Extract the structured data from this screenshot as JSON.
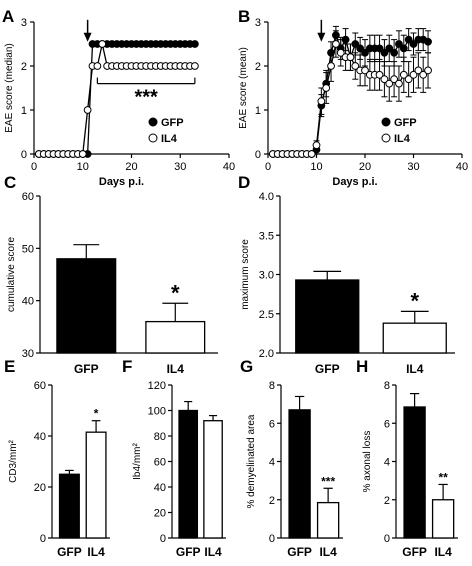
{
  "chart_data": [
    {
      "panel": "A",
      "type": "line",
      "xlabel": "Days p.i.",
      "ylabel": "EAE score (median)",
      "xlim": [
        0,
        40
      ],
      "ylim": [
        0,
        3
      ],
      "xticks": [
        "0",
        "10",
        "20",
        "30",
        "40"
      ],
      "yticks": [
        "0",
        "1",
        "2",
        "3"
      ],
      "legend": "bottom-right",
      "arrow_day": 11,
      "significance": "***",
      "series": [
        {
          "name": "GFP",
          "marker": "filled",
          "x": [
            1,
            2,
            3,
            4,
            5,
            6,
            7,
            8,
            9,
            10,
            11,
            12,
            13,
            14,
            15,
            16,
            17,
            18,
            19,
            20,
            21,
            22,
            23,
            24,
            25,
            26,
            27,
            28,
            29,
            30,
            31,
            32,
            33
          ],
          "y": [
            0,
            0,
            0,
            0,
            0,
            0,
            0,
            0,
            0,
            0,
            0,
            2.5,
            2.5,
            2.5,
            2.5,
            2.5,
            2.5,
            2.5,
            2.5,
            2.5,
            2.5,
            2.5,
            2.5,
            2.5,
            2.5,
            2.5,
            2.5,
            2.5,
            2.5,
            2.5,
            2.5,
            2.5,
            2.5
          ]
        },
        {
          "name": "IL4",
          "marker": "open",
          "x": [
            1,
            2,
            3,
            4,
            5,
            6,
            7,
            8,
            9,
            10,
            11,
            12,
            13,
            14,
            15,
            16,
            17,
            18,
            19,
            20,
            21,
            22,
            23,
            24,
            25,
            26,
            27,
            28,
            29,
            30,
            31,
            32,
            33
          ],
          "y": [
            0,
            0,
            0,
            0,
            0,
            0,
            0,
            0,
            0,
            0,
            1,
            2,
            2,
            2.5,
            2,
            2,
            2,
            2,
            2,
            2,
            2,
            2,
            2,
            2,
            2,
            2,
            2,
            2,
            2,
            2,
            2,
            2,
            2
          ]
        }
      ]
    },
    {
      "panel": "B",
      "type": "line",
      "xlabel": "Days p.i.",
      "ylabel": "EAE score (mean)",
      "xlim": [
        0,
        40
      ],
      "ylim": [
        0,
        3
      ],
      "xticks": [
        "0",
        "10",
        "20",
        "30",
        "40"
      ],
      "yticks": [
        "0",
        "1",
        "2",
        "3"
      ],
      "legend": "bottom-right",
      "arrow_day": 11,
      "series": [
        {
          "name": "GFP",
          "marker": "filled",
          "x": [
            1,
            2,
            3,
            4,
            5,
            6,
            7,
            8,
            9,
            10,
            11,
            12,
            13,
            14,
            15,
            16,
            17,
            18,
            19,
            20,
            21,
            22,
            23,
            24,
            25,
            26,
            27,
            28,
            29,
            30,
            31,
            32,
            33
          ],
          "y": [
            0,
            0,
            0,
            0,
            0,
            0,
            0,
            0,
            0,
            0.1,
            1.1,
            1.6,
            2.3,
            2.7,
            2.4,
            2.6,
            2.2,
            2.5,
            2.4,
            2.3,
            2.4,
            2.4,
            2.4,
            2.3,
            2.4,
            2.3,
            2.5,
            2.4,
            2.6,
            2.5,
            2.6,
            2.6,
            2.55
          ],
          "err": [
            0,
            0,
            0,
            0,
            0,
            0,
            0,
            0,
            0,
            0.05,
            0.25,
            0.3,
            0.25,
            0.2,
            0.25,
            0.25,
            0.3,
            0.25,
            0.25,
            0.3,
            0.3,
            0.3,
            0.3,
            0.3,
            0.3,
            0.3,
            0.3,
            0.3,
            0.25,
            0.25,
            0.25,
            0.25,
            0.25
          ]
        },
        {
          "name": "IL4",
          "marker": "open",
          "x": [
            1,
            2,
            3,
            4,
            5,
            6,
            7,
            8,
            9,
            10,
            11,
            12,
            13,
            14,
            15,
            16,
            17,
            18,
            19,
            20,
            21,
            22,
            23,
            24,
            25,
            26,
            27,
            28,
            29,
            30,
            31,
            32,
            33
          ],
          "y": [
            0,
            0,
            0,
            0,
            0,
            0,
            0,
            0,
            0,
            0.2,
            1.2,
            1.5,
            2.0,
            2.5,
            2.3,
            2.2,
            2.2,
            2.0,
            1.9,
            1.9,
            1.8,
            1.8,
            1.8,
            1.7,
            1.6,
            1.7,
            1.6,
            1.8,
            1.7,
            1.8,
            1.9,
            1.8,
            1.9
          ],
          "err": [
            0,
            0,
            0,
            0,
            0,
            0,
            0,
            0,
            0,
            0.1,
            0.3,
            0.35,
            0.35,
            0.3,
            0.3,
            0.3,
            0.3,
            0.3,
            0.35,
            0.35,
            0.35,
            0.35,
            0.35,
            0.4,
            0.4,
            0.4,
            0.4,
            0.4,
            0.4,
            0.4,
            0.4,
            0.4,
            0.4
          ]
        }
      ]
    },
    {
      "panel": "C",
      "type": "bar",
      "categories": [
        "GFP",
        "IL4"
      ],
      "values": [
        48,
        36
      ],
      "errors": [
        2.7,
        3.5
      ],
      "ylabel": "cumulative score",
      "ylim": [
        30,
        60
      ],
      "yticks": [
        "30",
        "40",
        "50",
        "60"
      ],
      "significance": "*"
    },
    {
      "panel": "D",
      "type": "bar",
      "categories": [
        "GFP",
        "IL4"
      ],
      "values": [
        2.93,
        2.38
      ],
      "errors": [
        0.11,
        0.15
      ],
      "ylabel": "maximum score",
      "ylim": [
        2.0,
        4.0
      ],
      "yticks": [
        "2.0",
        "2.5",
        "3.0",
        "3.5",
        "4.0"
      ],
      "significance": "*"
    },
    {
      "panel": "E",
      "type": "bar",
      "categories": [
        "GFP",
        "IL4"
      ],
      "values": [
        25,
        41.5
      ],
      "errors": [
        1.5,
        4.5
      ],
      "ylabel": "CD3/mm²",
      "ylim": [
        0,
        60
      ],
      "yticks": [
        "0",
        "20",
        "40",
        "60"
      ],
      "significance": "*"
    },
    {
      "panel": "F",
      "type": "bar",
      "categories": [
        "GFP",
        "IL4"
      ],
      "values": [
        100,
        92
      ],
      "errors": [
        7,
        4
      ],
      "ylabel": "Ib4/mm²",
      "ylim": [
        0,
        120
      ],
      "yticks": [
        "0",
        "20",
        "40",
        "60",
        "80",
        "100",
        "120"
      ],
      "significance": ""
    },
    {
      "panel": "G",
      "type": "bar",
      "categories": [
        "GFP",
        "IL4"
      ],
      "values": [
        6.7,
        1.85
      ],
      "errors": [
        0.7,
        0.75
      ],
      "ylabel": "% demyelinated area",
      "ylim": [
        0,
        8
      ],
      "yticks": [
        "0",
        "2",
        "4",
        "6",
        "8"
      ],
      "significance": "***"
    },
    {
      "panel": "H",
      "type": "bar",
      "categories": [
        "GFP",
        "IL4"
      ],
      "values": [
        6.85,
        2.0
      ],
      "errors": [
        0.7,
        0.8
      ],
      "ylabel": "% axonal loss",
      "ylim": [
        0,
        8
      ],
      "yticks": [
        "0",
        "2",
        "4",
        "6",
        "8"
      ],
      "significance": "**"
    }
  ]
}
